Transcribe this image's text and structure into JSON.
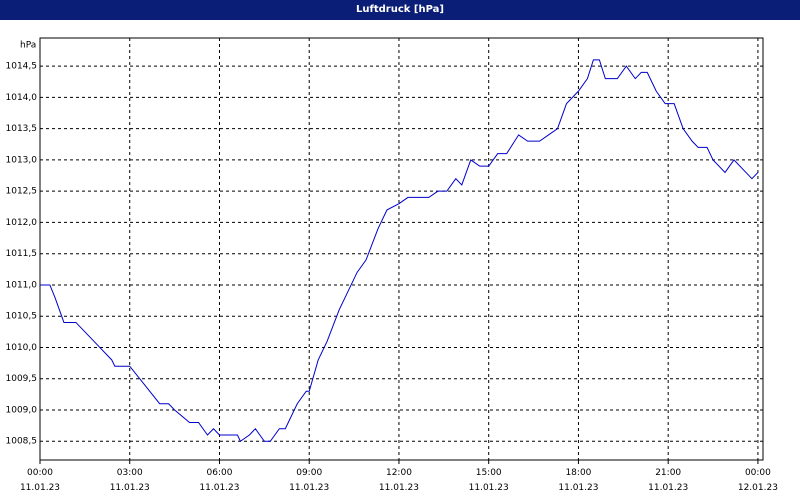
{
  "chart_data": {
    "type": "line",
    "title": "Luftdruck [hPa]",
    "y_label": "hPa",
    "x": [
      0,
      0.33,
      0.5,
      0.8,
      1.2,
      1.6,
      2.0,
      2.4,
      2.5,
      3.0,
      3.5,
      4.0,
      4.3,
      4.5,
      5.0,
      5.3,
      5.6,
      5.8,
      6.0,
      6.6,
      6.7,
      7.0,
      7.2,
      7.5,
      7.7,
      8.0,
      8.2,
      8.6,
      8.9,
      9.0,
      9.3,
      9.6,
      10.0,
      10.3,
      10.6,
      10.9,
      11.3,
      11.6,
      12.0,
      12.3,
      13.0,
      13.3,
      13.6,
      13.9,
      14.1,
      14.4,
      14.7,
      15.0,
      15.3,
      15.6,
      16.0,
      16.3,
      16.7,
      17.0,
      17.3,
      17.6,
      18.0,
      18.3,
      18.5,
      18.7,
      18.9,
      19.3,
      19.6,
      19.9,
      20.1,
      20.3,
      20.6,
      20.9,
      21.2,
      21.5,
      21.8,
      22.0,
      22.3,
      22.5,
      22.9,
      23.2,
      23.6,
      23.8,
      24.0
    ],
    "values": [
      1011.0,
      1011.0,
      1010.8,
      1010.4,
      1010.4,
      1010.2,
      1010.0,
      1009.8,
      1009.7,
      1009.7,
      1009.4,
      1009.1,
      1009.1,
      1009.0,
      1008.8,
      1008.8,
      1008.6,
      1008.7,
      1008.6,
      1008.6,
      1008.5,
      1008.6,
      1008.7,
      1008.5,
      1008.5,
      1008.7,
      1008.7,
      1009.1,
      1009.3,
      1009.3,
      1009.8,
      1010.1,
      1010.6,
      1010.9,
      1011.2,
      1011.4,
      1011.9,
      1012.2,
      1012.3,
      1012.4,
      1012.4,
      1012.5,
      1012.5,
      1012.7,
      1012.6,
      1013.0,
      1012.9,
      1012.9,
      1013.1,
      1013.1,
      1013.4,
      1013.3,
      1013.3,
      1013.4,
      1013.5,
      1013.9,
      1014.1,
      1014.3,
      1014.6,
      1014.6,
      1014.3,
      1014.3,
      1014.5,
      1014.3,
      1014.4,
      1014.4,
      1014.1,
      1013.9,
      1013.9,
      1013.5,
      1013.3,
      1013.2,
      1013.2,
      1013.0,
      1012.8,
      1013.0,
      1012.8,
      1012.7,
      1012.8
    ],
    "color": "#0000cc",
    "xlim": [
      0,
      24.17
    ],
    "ylim": [
      1008.2,
      1014.95
    ],
    "xticks": [
      {
        "value": 0,
        "label": "00:00\n11.01.23"
      },
      {
        "value": 3,
        "label": "03:00\n11.01.23"
      },
      {
        "value": 6,
        "label": "06:00\n11.01.23"
      },
      {
        "value": 9,
        "label": "09:00\n11.01.23"
      },
      {
        "value": 12,
        "label": "12:00\n11.01.23"
      },
      {
        "value": 15,
        "label": "15:00\n11.01.23"
      },
      {
        "value": 18,
        "label": "18:00\n11.01.23"
      },
      {
        "value": 21,
        "label": "21:00\n11.01.23"
      },
      {
        "value": 24,
        "label": "00:00\n12.01.23"
      }
    ],
    "yticks": [
      {
        "value": 1008.5,
        "label": "1008,5"
      },
      {
        "value": 1009,
        "label": "1009,0"
      },
      {
        "value": 1009.5,
        "label": "1009,5"
      },
      {
        "value": 1010,
        "label": "1010,0"
      },
      {
        "value": 1010.5,
        "label": "1010,5"
      },
      {
        "value": 1011,
        "label": "1011,0"
      },
      {
        "value": 1011.5,
        "label": "1011,5"
      },
      {
        "value": 1012,
        "label": "1012,0"
      },
      {
        "value": 1012.5,
        "label": "1012,5"
      },
      {
        "value": 1013,
        "label": "1013,0"
      },
      {
        "value": 1013.5,
        "label": "1013,5"
      },
      {
        "value": 1014,
        "label": "1014,0"
      },
      {
        "value": 1014.5,
        "label": "1014,5"
      }
    ],
    "grid": true
  }
}
